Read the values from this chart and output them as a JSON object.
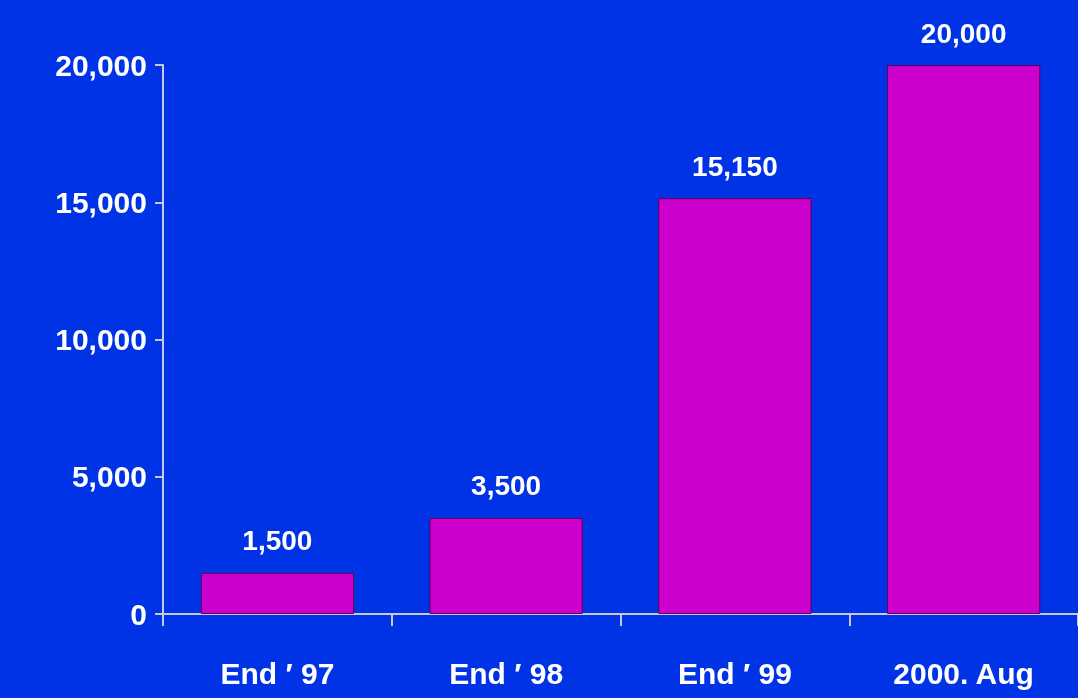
{
  "chart_data": {
    "type": "bar",
    "categories": [
      "End ′ 97",
      "End ′ 98",
      "End ′ 99",
      "2000. Aug"
    ],
    "values": [
      1500,
      3500,
      15150,
      20000
    ],
    "color": "#cc00cc",
    "value_labels": [
      "1,500",
      "3,500",
      "15,150",
      "20,000"
    ],
    "ylim": [
      0,
      20000
    ],
    "yticks": [
      0,
      {
        "value": 5000,
        "label": "5,000"
      },
      {
        "value": 10000,
        "label": "10,000"
      },
      {
        "value": 15000,
        "label": "15,000"
      },
      {
        "value": 20000,
        "label": "20,000"
      }
    ],
    "grid": false
  }
}
